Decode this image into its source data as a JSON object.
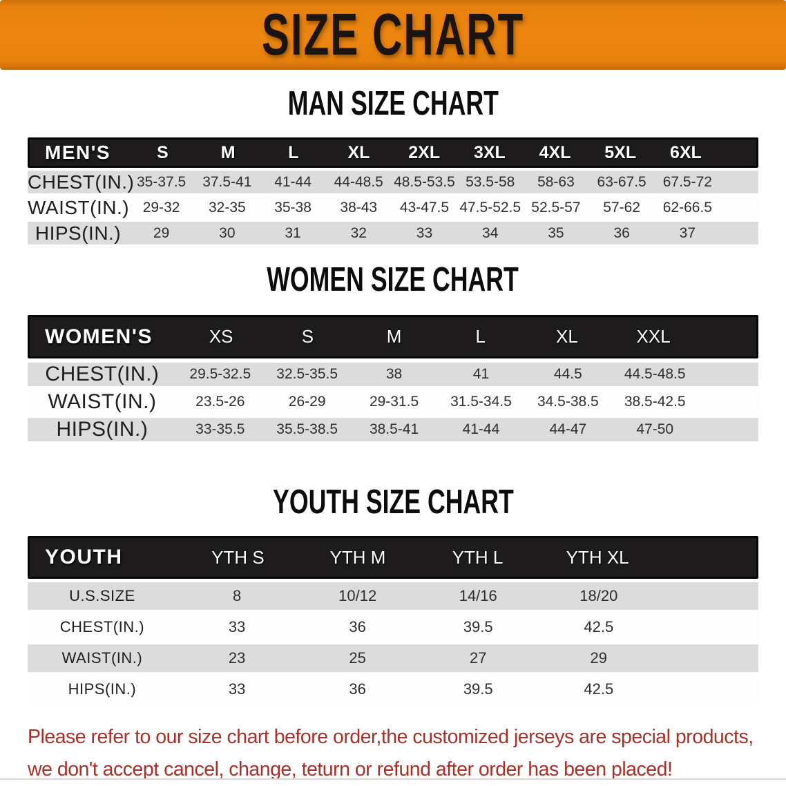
{
  "banner": {
    "title": "SIZE CHART"
  },
  "colors": {
    "banner_bg": "#e8820e",
    "table_header_bg": "#1d1b1b",
    "row_gray": "#dcdcdc",
    "notice_red": "#a93029",
    "heading_text": "#0c0c0c"
  },
  "sections": {
    "men": {
      "heading": "MAN SIZE CHART",
      "header": {
        "label": "MEN'S",
        "cols": [
          "S",
          "M",
          "L",
          "XL",
          "2XL",
          "3XL",
          "4XL",
          "5XL",
          "6XL"
        ]
      },
      "rows": [
        {
          "label": "CHEST(IN.)",
          "values": [
            "35-37.5",
            "37.5-41",
            "41-44",
            "44-48.5",
            "48.5-53.5",
            "53.5-58",
            "58-63",
            "63-67.5",
            "67.5-72"
          ]
        },
        {
          "label": "WAIST(IN.)",
          "values": [
            "29-32",
            "32-35",
            "35-38",
            "38-43",
            "43-47.5",
            "47.5-52.5",
            "52.5-57",
            "57-62",
            "62-66.5"
          ]
        },
        {
          "label": "HIPS(IN.)",
          "values": [
            "29",
            "30",
            "31",
            "32",
            "33",
            "34",
            "35",
            "36",
            "37"
          ]
        }
      ]
    },
    "women": {
      "heading": "WOMEN SIZE CHART",
      "header": {
        "label": "WOMEN'S",
        "cols": [
          "XS",
          "S",
          "M",
          "L",
          "XL",
          "XXL"
        ]
      },
      "rows": [
        {
          "label": "CHEST(IN.)",
          "values": [
            "29.5-32.5",
            "32.5-35.5",
            "38",
            "41",
            "44.5",
            "44.5-48.5"
          ]
        },
        {
          "label": "WAIST(IN.)",
          "values": [
            "23.5-26",
            "26-29",
            "29-31.5",
            "31.5-34.5",
            "34.5-38.5",
            "38.5-42.5"
          ]
        },
        {
          "label": "HIPS(IN.)",
          "values": [
            "33-35.5",
            "35.5-38.5",
            "38.5-41",
            "41-44",
            "44-47",
            "47-50"
          ]
        }
      ]
    },
    "youth": {
      "heading": "YOUTH SIZE CHART",
      "header": {
        "label": "YOUTH",
        "cols": [
          "YTH S",
          "YTH M",
          "YTH L",
          "YTH XL"
        ]
      },
      "rows": [
        {
          "label": "U.S.SIZE",
          "values": [
            "8",
            "10/12",
            "14/16",
            "18/20"
          ]
        },
        {
          "label": "CHEST(IN.)",
          "values": [
            "33",
            "36",
            "39.5",
            "42.5"
          ]
        },
        {
          "label": "WAIST(IN.)",
          "values": [
            "23",
            "25",
            "27",
            "29"
          ]
        },
        {
          "label": "HIPS(IN.)",
          "values": [
            "33",
            "36",
            "39.5",
            "42.5"
          ]
        }
      ]
    }
  },
  "notice": {
    "line1": "Please refer to our size chart before order,the customized jerseys are special products,",
    "line2": "we don't accept cancel, change, teturn or refund after order has been placed!"
  }
}
